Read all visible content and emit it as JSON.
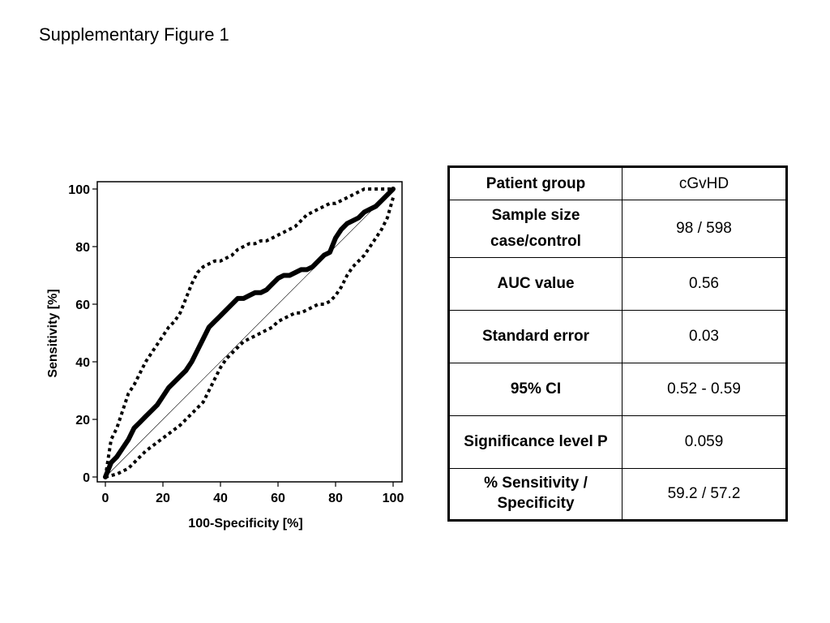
{
  "page": {
    "title": "Supplementary Figure 1"
  },
  "chart_data": {
    "type": "line",
    "xlabel": "100-Specificity [%]",
    "ylabel": "Sensitivity [%]",
    "xlim": [
      0,
      100
    ],
    "ylim": [
      0,
      100
    ],
    "xticks": [
      "0",
      "20",
      "40",
      "60",
      "80",
      "100"
    ],
    "yticks": [
      "0",
      "20",
      "40",
      "60",
      "80",
      "100"
    ],
    "grid": false,
    "legend": "none",
    "reference_line": {
      "x": [
        0,
        100
      ],
      "y": [
        0,
        100
      ],
      "style": "thin"
    },
    "series": [
      {
        "style": "thick-solid",
        "x": [
          0,
          2,
          4,
          6,
          8,
          10,
          12,
          14,
          16,
          18,
          20,
          22,
          24,
          26,
          28,
          30,
          32,
          34,
          36,
          38,
          39,
          40,
          42,
          44,
          46,
          48,
          50,
          52,
          54,
          56,
          58,
          60,
          62,
          64,
          66,
          68,
          70,
          72,
          74,
          76,
          78,
          80,
          82,
          84,
          86,
          88,
          90,
          92,
          94,
          96,
          98,
          100
        ],
        "y": [
          0,
          5,
          7,
          10,
          13,
          17,
          19,
          21,
          23,
          25,
          28,
          31,
          33,
          35,
          37,
          40,
          44,
          48,
          52,
          54,
          55,
          56,
          58,
          60,
          62,
          62,
          63,
          64,
          64,
          65,
          67,
          69,
          70,
          70,
          71,
          72,
          72,
          73,
          75,
          77,
          78,
          83,
          86,
          88,
          89,
          90,
          92,
          93,
          94,
          96,
          98,
          100
        ]
      },
      {
        "style": "dotted",
        "x": [
          0,
          2,
          4,
          6,
          8,
          10,
          12,
          14,
          16,
          18,
          20,
          22,
          24,
          26,
          28,
          30,
          32,
          34,
          36,
          38,
          40,
          42,
          44,
          46,
          48,
          50,
          52,
          54,
          56,
          58,
          60,
          62,
          64,
          66,
          68,
          70,
          72,
          74,
          76,
          78,
          80,
          82,
          84,
          86,
          88,
          90,
          92,
          94,
          96,
          98,
          100
        ],
        "y": [
          0,
          13,
          17,
          23,
          29,
          32,
          36,
          40,
          43,
          46,
          49,
          52,
          54,
          57,
          62,
          67,
          71,
          73,
          74,
          75,
          75,
          76,
          77,
          79,
          80,
          81,
          81,
          82,
          82,
          83,
          84,
          85,
          86,
          87,
          89,
          91,
          92,
          93,
          94,
          95,
          95,
          96,
          97,
          98,
          99,
          100,
          100,
          100,
          100,
          100,
          100
        ]
      },
      {
        "style": "dotted",
        "x": [
          0,
          4,
          8,
          10,
          14,
          18,
          22,
          26,
          30,
          34,
          36,
          38,
          40,
          42,
          44,
          46,
          48,
          50,
          52,
          54,
          56,
          58,
          60,
          62,
          64,
          66,
          68,
          70,
          72,
          74,
          76,
          78,
          80,
          82,
          84,
          86,
          88,
          90,
          92,
          94,
          96,
          98,
          100
        ],
        "y": [
          0,
          1,
          3,
          5,
          9,
          12,
          15,
          18,
          22,
          26,
          30,
          34,
          38,
          41,
          43,
          45,
          47,
          48,
          49,
          50,
          51,
          52,
          54,
          55,
          56,
          57,
          57,
          58,
          59,
          60,
          60,
          61,
          63,
          66,
          70,
          73,
          75,
          77,
          80,
          83,
          86,
          90,
          97
        ]
      }
    ]
  },
  "table": {
    "rows": [
      {
        "label": "Patient group",
        "value": "cGvHD"
      },
      {
        "label": "Sample size case/control",
        "value": "98 / 598"
      },
      {
        "label": "AUC value",
        "value": "0.56"
      },
      {
        "label": "Standard error",
        "value": "0.03"
      },
      {
        "label": "95% CI",
        "value": "0.52 - 0.59"
      },
      {
        "label": "Significance level P",
        "value": "0.059"
      },
      {
        "label": "% Sensitivity / Specificity",
        "value": "59.2 / 57.2"
      }
    ]
  }
}
